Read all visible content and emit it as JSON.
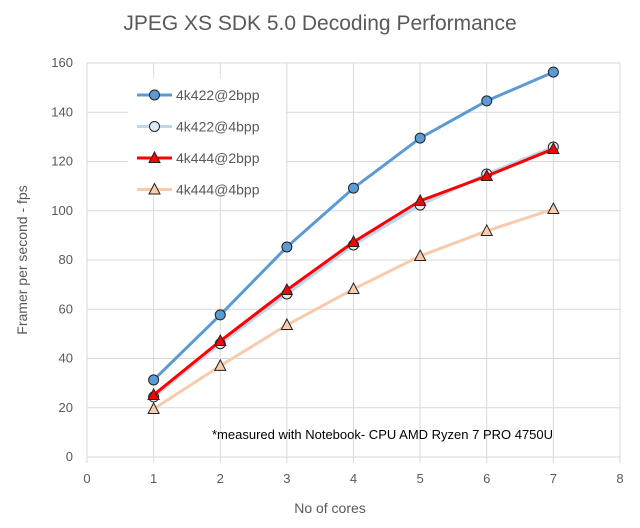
{
  "chart_data": {
    "type": "line",
    "title": "JPEG XS SDK 5.0 Decoding Performance",
    "xlabel": "No of cores",
    "ylabel": "Framer per second - fps",
    "xlim": [
      0,
      8
    ],
    "ylim": [
      0,
      160
    ],
    "xticks": [
      0,
      1,
      2,
      3,
      4,
      5,
      6,
      7,
      8
    ],
    "yticks": [
      0,
      20,
      40,
      60,
      80,
      100,
      120,
      140,
      160
    ],
    "grid": true,
    "legend_position": "top-left",
    "annotation": "*measured with Notebook- CPU AMD Ryzen 7 PRO 4750U",
    "x": [
      1,
      2,
      3,
      4,
      5,
      6,
      7
    ],
    "series": [
      {
        "name": "4k422@2bpp",
        "values": [
          31.3,
          57.7,
          85.3,
          109.2,
          129.5,
          144.6,
          156.3
        ],
        "color": "#5B9BD5",
        "marker": "circle",
        "marker_fill": "#5B9BD5",
        "line_width": 3
      },
      {
        "name": "4k422@4bpp",
        "values": [
          24.4,
          46.0,
          66.2,
          86.1,
          102.3,
          114.9,
          125.9
        ],
        "color": "#BDD7EE",
        "marker": "circle",
        "marker_fill": "#DEEBF7",
        "line_width": 3
      },
      {
        "name": "4k444@2bpp",
        "values": [
          25.2,
          47.1,
          67.8,
          87.3,
          104.0,
          114.1,
          125.1
        ],
        "color": "#FF0000",
        "marker": "triangle",
        "marker_fill": "#FF0000",
        "line_width": 3
      },
      {
        "name": "4k444@4bpp",
        "values": [
          19.5,
          37.0,
          53.6,
          68.2,
          81.6,
          91.8,
          100.7
        ],
        "color": "#F8CBAD",
        "marker": "triangle",
        "marker_fill": "#F8CBAD",
        "line_width": 3
      }
    ]
  }
}
